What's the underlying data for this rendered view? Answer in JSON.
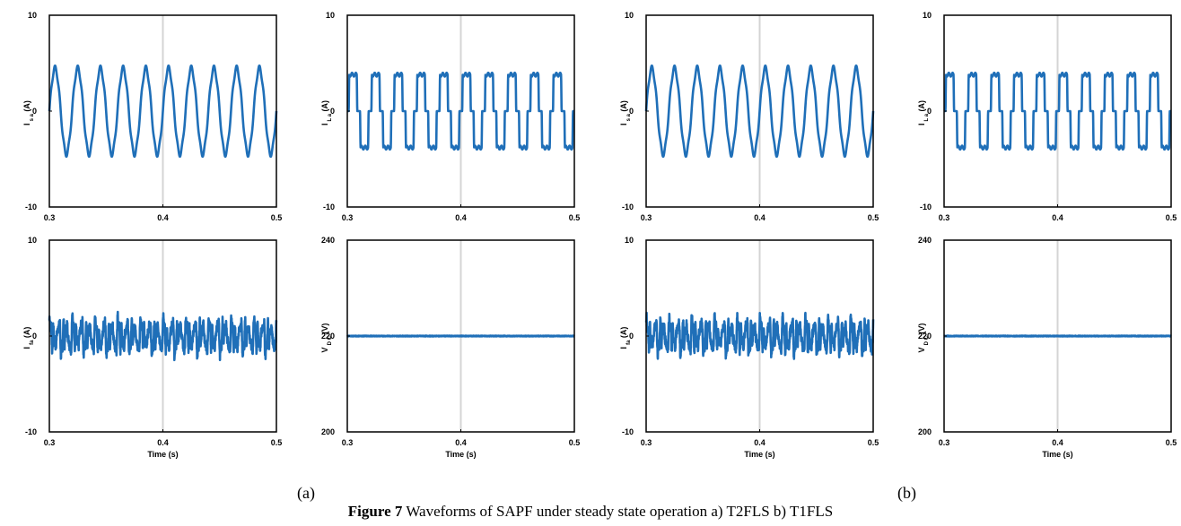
{
  "figure": {
    "label_a": "(a)",
    "label_b": "(b)",
    "caption_bold": "Figure 7",
    "caption_text": " Waveforms of SAPF under steady state operation a) T2FLS b) T1FLS",
    "line_color": "#1f6fb8",
    "grid_color": "#d4d4d4"
  },
  "chart_data": [
    {
      "type": "line",
      "group": "a",
      "ylabel_main": "I",
      "ylabel_sub": "s a",
      "ylabel_unit": "(A)",
      "xlabel": "",
      "xlim": [
        0.3,
        0.5
      ],
      "ylim": [
        -10,
        10
      ],
      "xticks": [
        "0.3",
        "0.4",
        "0.5"
      ],
      "yticks": [
        "-10",
        "0",
        "10"
      ],
      "grid": "x-at-0.4",
      "signal": {
        "kind": "sine",
        "frequency_hz": 50,
        "amplitude": 4.5
      }
    },
    {
      "type": "line",
      "group": "a",
      "ylabel_main": "I",
      "ylabel_sub": "L a",
      "ylabel_unit": "(A)",
      "xlabel": "",
      "xlim": [
        0.3,
        0.5
      ],
      "ylim": [
        -10,
        10
      ],
      "xticks": [
        "0.3",
        "0.4",
        "0.5"
      ],
      "yticks": [
        "-10",
        "0",
        "10"
      ],
      "grid": "x-at-0.4",
      "signal": {
        "kind": "quasi-square",
        "frequency_hz": 50,
        "amplitude": 4
      }
    },
    {
      "type": "line",
      "group": "a",
      "ylabel_main": "I",
      "ylabel_sub": "fa",
      "ylabel_unit": "(A)",
      "xlabel": "Time (s)",
      "xlim": [
        0.3,
        0.5
      ],
      "ylim": [
        -10,
        10
      ],
      "xticks": [
        "0.3",
        "0.4",
        "0.5"
      ],
      "yticks": [
        "-10",
        "0",
        "10"
      ],
      "grid": "x-at-0.4",
      "signal": {
        "kind": "harmonic-noise",
        "amplitude": 2.5
      }
    },
    {
      "type": "line",
      "group": "a",
      "ylabel_main": "V",
      "ylabel_sub": "D C",
      "ylabel_unit": "(V)",
      "xlabel": "Time (s)",
      "xlim": [
        0.3,
        0.5
      ],
      "ylim": [
        200,
        240
      ],
      "xticks": [
        "0.3",
        "0.4",
        "0.5"
      ],
      "yticks": [
        "200",
        "220",
        "240"
      ],
      "grid": "x-at-0.4",
      "signal": {
        "kind": "constant",
        "value": 220
      }
    },
    {
      "type": "line",
      "group": "b",
      "ylabel_main": "I",
      "ylabel_sub": "s a",
      "ylabel_unit": "(A)",
      "xlabel": "",
      "xlim": [
        0.3,
        0.5
      ],
      "ylim": [
        -10,
        10
      ],
      "xticks": [
        "0.3",
        "0.4",
        "0.5"
      ],
      "yticks": [
        "-10",
        "0",
        "10"
      ],
      "grid": "x-at-0.4",
      "signal": {
        "kind": "sine",
        "frequency_hz": 50,
        "amplitude": 4.5
      }
    },
    {
      "type": "line",
      "group": "b",
      "ylabel_main": "I",
      "ylabel_sub": "L a",
      "ylabel_unit": "(A)",
      "xlabel": "",
      "xlim": [
        0.3,
        0.5
      ],
      "ylim": [
        -10,
        10
      ],
      "xticks": [
        "0.3",
        "0.4",
        "0.5"
      ],
      "yticks": [
        "-10",
        "0",
        "10"
      ],
      "grid": "x-at-0.4",
      "signal": {
        "kind": "quasi-square",
        "frequency_hz": 50,
        "amplitude": 4
      }
    },
    {
      "type": "line",
      "group": "b",
      "ylabel_main": "I",
      "ylabel_sub": "fa",
      "ylabel_unit": "(A)",
      "xlabel": "Time (s)",
      "xlim": [
        0.3,
        0.5
      ],
      "ylim": [
        -10,
        10
      ],
      "xticks": [
        "0.3",
        "0.4",
        "0.5"
      ],
      "yticks": [
        "-10",
        "0",
        "10"
      ],
      "grid": "x-at-0.4",
      "signal": {
        "kind": "harmonic-noise",
        "amplitude": 2.5
      }
    },
    {
      "type": "line",
      "group": "b",
      "ylabel_main": "V",
      "ylabel_sub": "D C",
      "ylabel_unit": "(V)",
      "xlabel": "Time (s)",
      "xlim": [
        0.3,
        0.5
      ],
      "ylim": [
        200,
        240
      ],
      "xticks": [
        "0.3",
        "0.4",
        "0.5"
      ],
      "yticks": [
        "200",
        "220",
        "240"
      ],
      "grid": "x-at-0.4",
      "signal": {
        "kind": "constant",
        "value": 220
      }
    }
  ]
}
